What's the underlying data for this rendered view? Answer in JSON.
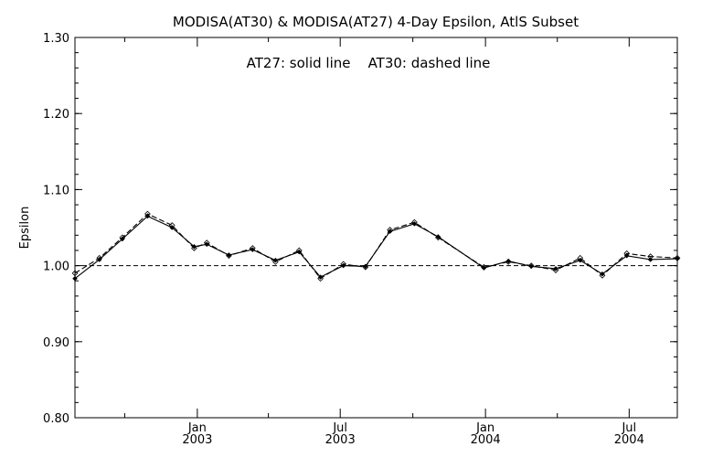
{
  "chart_data": {
    "type": "line",
    "title": "MODISA(AT30) & MODISA(AT27) 4-Day Epsilon, AtlS Subset",
    "ylabel": "Epsilon",
    "xlabel": "",
    "annotation": "AT27: solid line    AT30: dashed line",
    "ylim": [
      0.8,
      1.3
    ],
    "yticks": [
      "0.80",
      "0.90",
      "1.00",
      "1.10",
      "1.20",
      "1.30"
    ],
    "xlim": [
      "2002-07-30",
      "2004-08-31"
    ],
    "xticks": [
      {
        "date": "2003-01-01",
        "month": "Jan",
        "year": "2003"
      },
      {
        "date": "2003-07-01",
        "month": "Jul",
        "year": "2003"
      },
      {
        "date": "2004-01-01",
        "month": "Jan",
        "year": "2004"
      },
      {
        "date": "2004-07-01",
        "month": "Jul",
        "year": "2004"
      }
    ],
    "x": [
      "2002-07-30",
      "2002-08-30",
      "2002-09-28",
      "2002-10-30",
      "2002-11-30",
      "2002-12-28",
      "2003-01-13",
      "2003-02-10",
      "2003-03-12",
      "2003-04-10",
      "2003-05-10",
      "2003-06-06",
      "2003-07-05",
      "2003-08-02",
      "2003-09-02",
      "2003-10-03",
      "2003-11-02",
      "2003-12-30",
      "2004-01-30",
      "2004-02-28",
      "2004-03-30",
      "2004-04-30",
      "2004-05-28",
      "2004-06-28",
      "2004-07-28",
      "2004-08-31"
    ],
    "series": [
      {
        "name": "AT27",
        "style": "solid",
        "values": [
          0.983,
          1.008,
          1.035,
          1.065,
          1.05,
          1.025,
          1.028,
          1.014,
          1.021,
          1.007,
          1.018,
          0.985,
          1.0,
          0.999,
          1.045,
          1.055,
          1.038,
          0.997,
          1.006,
          0.999,
          0.996,
          1.007,
          0.989,
          1.013,
          1.008,
          1.009
        ]
      },
      {
        "name": "AT30",
        "style": "dashed",
        "values": [
          0.99,
          1.01,
          1.037,
          1.068,
          1.053,
          1.023,
          1.03,
          1.013,
          1.023,
          1.005,
          1.02,
          0.983,
          1.002,
          0.998,
          1.047,
          1.057,
          1.037,
          0.998,
          1.005,
          1.0,
          0.994,
          1.01,
          0.987,
          1.016,
          1.012,
          1.01
        ]
      }
    ],
    "reference_line": {
      "y": 1.0,
      "style": "dashed"
    },
    "grid": false,
    "line_color": "#000000"
  }
}
